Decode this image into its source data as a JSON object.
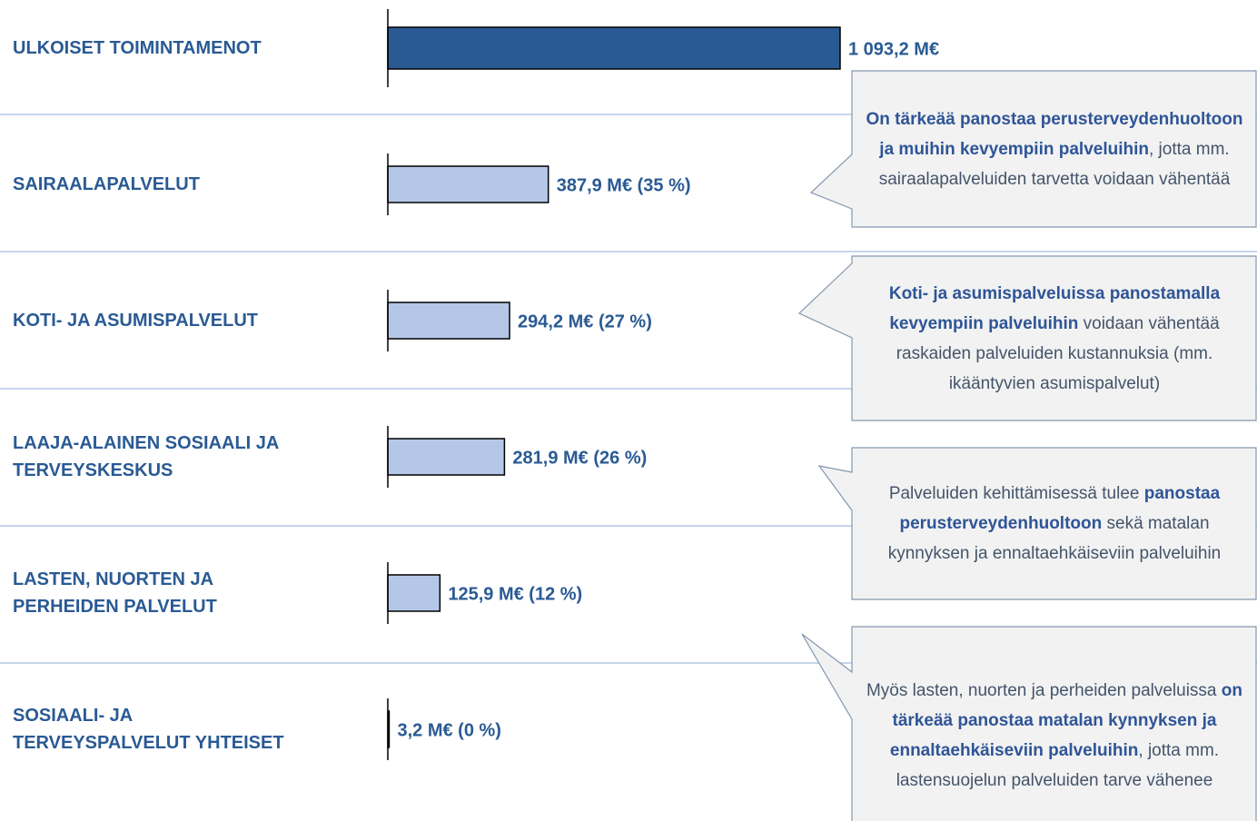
{
  "chart_data": {
    "type": "bar",
    "orientation": "horizontal",
    "categories": [
      "ULKOISET TOIMINTAMENOT",
      "SAIRAALAPALVELUT",
      "KOTI- JA ASUMISPALVELUT",
      "LAAJA-ALAINEN SOSIAALI JA\nTERVEYSKESKUS",
      "LASTEN, NUORTEN JA\nPERHEIDEN PALVELUT",
      "SOSIAALI- JA\nTERVEYSPALVELUT YHTEISET"
    ],
    "values": [
      1093.2,
      387.9,
      294.2,
      281.9,
      125.9,
      3.2
    ],
    "value_labels": [
      "1 093,2 M€",
      "387,9 M€ (35 %)",
      "294,2 M€ (27 %)",
      "281,9 M€ (26 %)",
      "125,9 M€ (12 %)",
      "3,2 M€ (0 %)"
    ],
    "colors": [
      "#2a5a94",
      "#b4c7e7",
      "#b4c7e7",
      "#b4c7e7",
      "#b4c7e7",
      "#b4c7e7"
    ],
    "annotations": [
      {
        "parts": [
          {
            "text": "On tärkeää panostaa perusterveydenhuoltoon ja muihin kevyempiin palveluihin",
            "bold": true
          },
          {
            "text": ", jotta mm. sairaalapalveluiden tarvetta voidaan vähentää",
            "bold": false
          }
        ]
      },
      {
        "parts": [
          {
            "text": "Koti- ja asumispalveluissa panostamalla kevyempiin palveluihin",
            "bold": true
          },
          {
            "text": " voidaan vähentää raskaiden palveluiden kustannuksia (mm. ikääntyvien asumispalvelut)",
            "bold": false
          }
        ]
      },
      {
        "parts": [
          {
            "text": "Palveluiden kehittämisessä tulee ",
            "bold": false
          },
          {
            "text": "panostaa perusterveydenhuoltoon",
            "bold": true
          },
          {
            "text": " sekä matalan kynnyksen ja ennaltaehkäiseviin palveluihin",
            "bold": false
          }
        ]
      },
      {
        "parts": [
          {
            "text": "Myös lasten, nuorten ja perheiden palveluissa ",
            "bold": false
          },
          {
            "text": "on tärkeää panostaa matalan kynnyksen ja ennaltaehkäiseviin palveluihin",
            "bold": true
          },
          {
            "text": ", jotta mm. lastensuojelun palveluiden tarve vähenee",
            "bold": false
          }
        ]
      }
    ]
  }
}
